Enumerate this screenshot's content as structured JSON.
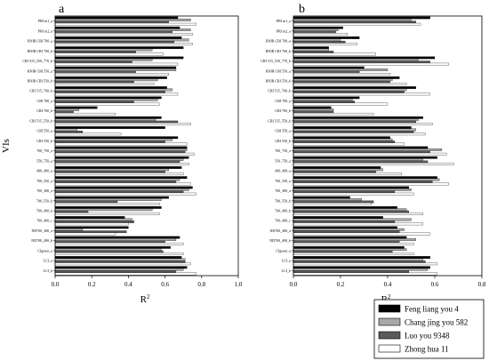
{
  "chart_data": [
    {
      "type": "bar",
      "orientation": "horizontal",
      "panel": "a",
      "xlabel": "R²",
      "ylabel": "VIs",
      "xlim": [
        0.0,
        1.0
      ],
      "xticks": [
        "0.0",
        "0.2",
        "0.4",
        "0.6",
        "0.8",
        "1.0"
      ],
      "categories": [
        "PRI m1_a",
        "PRI m2_a",
        "RNIR CRI 700_a",
        "RNIR CRI 700_b",
        "CRI 515_550_770_b",
        "RNIR CRI 550_a",
        "RNIR CRI 550_b",
        "CRI 515_700_b",
        "CRI 700_a",
        "CRI 700_b",
        "CRI 515_550_b",
        "CRI 550_a",
        "CRI 550_b",
        "700_750_a",
        "550_750_a",
        "490_490_a",
        "700_550_a",
        "700_490_a",
        "700_550_b",
        "700_490_b",
        "700_490_c",
        "ND700_490_a",
        "ND700_490_b",
        "CIgreen_a",
        "LCI_a",
        "LCI_b"
      ],
      "series": [
        {
          "name": "Feng liang you 4",
          "color": "#000000",
          "values": [
            0.67,
            0.68,
            0.69,
            0.7,
            0.7,
            0.66,
            0.61,
            0.61,
            0.58,
            0.23,
            0.58,
            0.6,
            0.67,
            0.72,
            0.73,
            0.69,
            0.72,
            0.75,
            0.62,
            0.58,
            0.38,
            0.4,
            0.68,
            0.63,
            0.69,
            0.72
          ]
        },
        {
          "name": "Chang jing you 582",
          "color": "#a8a8a8",
          "values": [
            0.74,
            0.74,
            0.73,
            0.53,
            0.53,
            0.66,
            0.56,
            0.64,
            0.56,
            0.13,
            0.55,
            0.12,
            0.64,
            0.72,
            0.7,
            0.62,
            0.68,
            0.73,
            0.58,
            0.53,
            0.42,
            0.15,
            0.66,
            0.58,
            0.71,
            0.7
          ]
        },
        {
          "name": "Luo you 9348",
          "color": "#5a5a5a",
          "values": [
            0.62,
            0.64,
            0.65,
            0.44,
            0.42,
            0.44,
            0.43,
            0.6,
            0.43,
            0.1,
            0.67,
            0.15,
            0.6,
            0.71,
            0.68,
            0.6,
            0.66,
            0.7,
            0.34,
            0.18,
            0.43,
            0.39,
            0.6,
            0.59,
            0.71,
            0.66
          ]
        },
        {
          "name": "Zhong hua 11",
          "color": "#ffffff",
          "values": [
            0.77,
            0.75,
            0.75,
            0.59,
            0.67,
            0.62,
            0.54,
            0.67,
            0.57,
            0.33,
            0.74,
            0.36,
            0.72,
            0.76,
            0.73,
            0.7,
            0.74,
            0.77,
            0.57,
            0.57,
            0.4,
            0.33,
            0.7,
            0.7,
            0.74,
            0.77
          ]
        }
      ]
    },
    {
      "type": "bar",
      "orientation": "horizontal",
      "panel": "b",
      "xlabel": "R²",
      "ylabel": "",
      "xlim": [
        0.0,
        0.8
      ],
      "xticks": [
        "0.0",
        "0.2",
        "0.4",
        "0.6",
        "0.8"
      ],
      "categories": [
        "PRI m1_a",
        "PRI m2_a",
        "RNIR CRI 700_a",
        "RNIR CRI 700_b",
        "CRI 515_550_770_b",
        "RNIR CRI 550_a",
        "RNIR CRI 550_b",
        "CRI 515_700_b",
        "CRI 700_a",
        "CRI 700_b",
        "CRI 515_550_b",
        "CRI 550_a",
        "CRI 550_b",
        "700_750_a",
        "550_750_a",
        "490_490_a",
        "700_550_a",
        "700_490_a",
        "700_550_b",
        "700_490_b",
        "700_490_c",
        "ND700_490_a",
        "ND700_490_b",
        "CIgreen_a",
        "LCI_a",
        "LCI_b"
      ],
      "series": [
        {
          "name": "Feng liang you 4",
          "color": "#000000",
          "values": [
            0.58,
            0.21,
            0.28,
            0.15,
            0.6,
            0.3,
            0.45,
            0.52,
            0.28,
            0.16,
            0.55,
            0.5,
            0.41,
            0.57,
            0.61,
            0.37,
            0.61,
            0.49,
            0.24,
            0.44,
            0.38,
            0.44,
            0.48,
            0.47,
            0.58,
            0.58
          ]
        },
        {
          "name": "Chang jing you 582",
          "color": "#a8a8a8",
          "values": [
            0.5,
            0.19,
            0.2,
            0.15,
            0.53,
            0.4,
            0.42,
            0.48,
            0.25,
            0.17,
            0.53,
            0.52,
            0.42,
            0.63,
            0.55,
            0.38,
            0.62,
            0.5,
            0.29,
            0.48,
            0.5,
            0.47,
            0.52,
            0.48,
            0.55,
            0.57
          ]
        },
        {
          "name": "Luo you 9348",
          "color": "#5a5a5a",
          "values": [
            0.52,
            0.18,
            0.22,
            0.17,
            0.58,
            0.28,
            0.41,
            0.47,
            0.26,
            0.17,
            0.52,
            0.51,
            0.43,
            0.58,
            0.57,
            0.35,
            0.59,
            0.43,
            0.34,
            0.49,
            0.43,
            0.45,
            0.45,
            0.42,
            0.56,
            0.49
          ]
        },
        {
          "name": "Zhong hua 11",
          "color": "#ffffff",
          "values": [
            0.54,
            0.23,
            0.27,
            0.35,
            0.66,
            0.41,
            0.48,
            0.58,
            0.4,
            0.34,
            0.59,
            0.56,
            0.47,
            0.65,
            0.68,
            0.46,
            0.66,
            0.51,
            0.33,
            0.55,
            0.55,
            0.58,
            0.51,
            0.51,
            0.61,
            0.61
          ]
        }
      ]
    }
  ],
  "legend": {
    "placement": "bottom-right",
    "items": [
      "Feng liang you 4",
      "Chang jing you 582",
      "Luo you 9348",
      "Zhong hua 11"
    ]
  }
}
